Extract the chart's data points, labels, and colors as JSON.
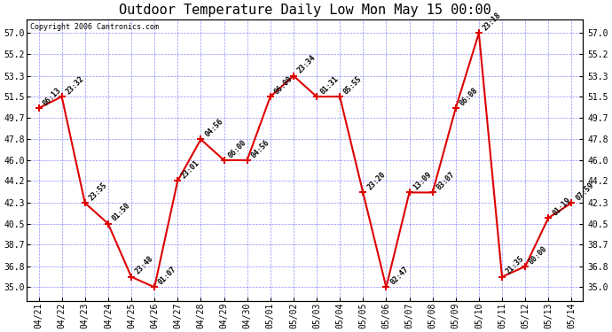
{
  "title": "Outdoor Temperature Daily Low Mon May 15 00:00",
  "copyright": "Copyright 2006 Cantronics.com",
  "x_labels": [
    "04/21",
    "04/22",
    "04/23",
    "04/24",
    "04/25",
    "04/26",
    "04/27",
    "04/28",
    "04/29",
    "04/30",
    "05/01",
    "05/02",
    "05/03",
    "05/04",
    "05/05",
    "05/06",
    "05/07",
    "05/08",
    "05/09",
    "05/10",
    "05/11",
    "05/12",
    "05/13",
    "05/14"
  ],
  "y_values": [
    50.5,
    51.5,
    42.3,
    40.5,
    35.9,
    35.0,
    44.2,
    47.8,
    46.0,
    46.0,
    51.5,
    53.3,
    51.5,
    51.5,
    43.2,
    35.0,
    43.2,
    43.2,
    50.5,
    57.0,
    35.9,
    36.8,
    41.0,
    42.3
  ],
  "point_labels": [
    "06:13",
    "23:32",
    "23:55",
    "01:50",
    "23:48",
    "01:07",
    "23:01",
    "04:56",
    "06:00",
    "04:56",
    "06:00",
    "23:34",
    "01:31",
    "05:55",
    "23:20",
    "02:47",
    "13:09",
    "03:07",
    "06:08",
    "23:18",
    "21:35",
    "00:00",
    "01:19",
    "07:59"
  ],
  "y_ticks": [
    35.0,
    36.8,
    38.7,
    40.5,
    42.3,
    44.2,
    46.0,
    47.8,
    49.7,
    51.5,
    53.3,
    55.2,
    57.0
  ],
  "y_min": 33.8,
  "y_max": 58.2,
  "line_color": "#dd0000",
  "marker_color": "#dd0000",
  "bg_color": "#ffffff",
  "grid_color": "#3333ff",
  "title_fontsize": 11,
  "tick_fontsize": 7,
  "point_label_fontsize": 6,
  "copyright_fontsize": 6
}
